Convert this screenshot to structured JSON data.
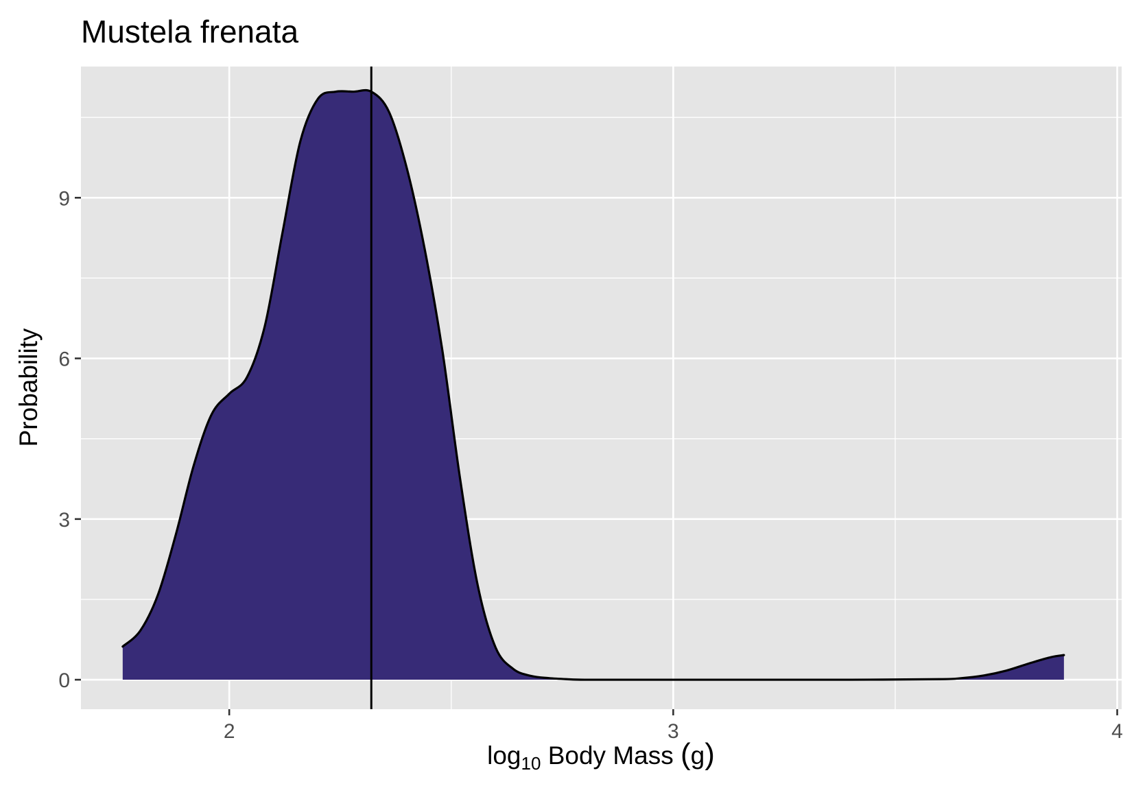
{
  "chart_data": {
    "type": "area",
    "title": "Mustela frenata",
    "xlabel": {
      "prefix": "log",
      "subscript": "10",
      "rest": " Body Mass ",
      "paren_open": "(",
      "paren_inner": "g",
      "paren_close": ")"
    },
    "ylabel": "Probability",
    "xlim": [
      1.666,
      4.01
    ],
    "ylim": [
      -0.55,
      11.45
    ],
    "x_ticks": [
      {
        "value": 2,
        "label": "2"
      },
      {
        "value": 3,
        "label": "3"
      },
      {
        "value": 4,
        "label": "4"
      }
    ],
    "y_ticks": [
      {
        "value": 0,
        "label": "0"
      },
      {
        "value": 3,
        "label": "3"
      },
      {
        "value": 6,
        "label": "6"
      },
      {
        "value": 9,
        "label": "9"
      }
    ],
    "x_minor_grid": [
      2.5,
      3.5
    ],
    "y_minor_grid": [
      1.5,
      4.5,
      7.5,
      10.5
    ],
    "grid": true,
    "panel_color": "#e5e5e5",
    "fill_color": "#372b77",
    "line_color": "#000000",
    "vline_x": 2.32,
    "series": [
      {
        "x": [
          1.76,
          1.8,
          1.84,
          1.88,
          1.92,
          1.96,
          2.0,
          2.04,
          2.08,
          2.12,
          2.16,
          2.2,
          2.24,
          2.28,
          2.32,
          2.36,
          2.4,
          2.44,
          2.48,
          2.52,
          2.56,
          2.6,
          2.64,
          2.68,
          2.72,
          2.76,
          2.8,
          2.9,
          3.0,
          3.2,
          3.4,
          3.6,
          3.65,
          3.7,
          3.75,
          3.8,
          3.85,
          3.88
        ],
        "y": [
          0.62,
          0.92,
          1.6,
          2.72,
          4.0,
          4.95,
          5.34,
          5.65,
          6.6,
          8.35,
          10.05,
          10.85,
          10.98,
          10.98,
          10.98,
          10.6,
          9.55,
          8.05,
          6.15,
          3.75,
          1.75,
          0.6,
          0.2,
          0.07,
          0.03,
          0.01,
          0.0,
          0.0,
          0.0,
          0.0,
          0.0,
          0.01,
          0.03,
          0.08,
          0.17,
          0.3,
          0.42,
          0.46
        ]
      }
    ]
  }
}
